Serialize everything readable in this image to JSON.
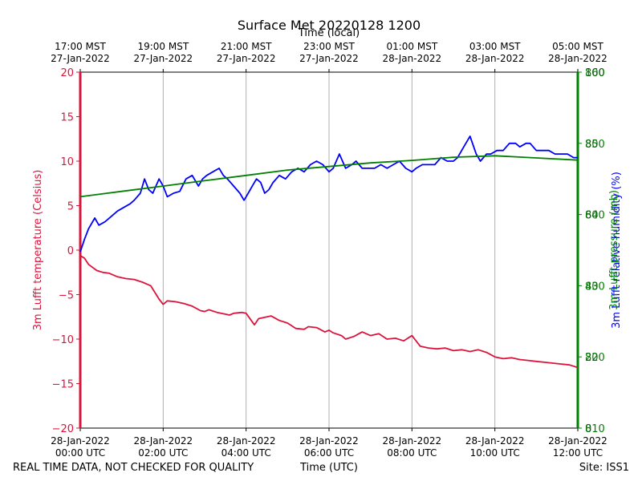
{
  "chart_data": {
    "type": "line",
    "title": "Surface Met 20220128 1200",
    "top_xlabel": "Time (local)",
    "bottom_xlabel": "Time (UTC)",
    "footer_left": "REAL TIME DATA, NOT CHECKED FOR QUALITY",
    "footer_right": "Site: ISS1",
    "x_range": [
      0,
      12
    ],
    "x_ticks": [
      {
        "x": 0,
        "utc": [
          "28-Jan-2022",
          "00:00 UTC"
        ],
        "local": [
          "17:00 MST",
          "27-Jan-2022"
        ]
      },
      {
        "x": 2,
        "utc": [
          "28-Jan-2022",
          "02:00 UTC"
        ],
        "local": [
          "19:00 MST",
          "27-Jan-2022"
        ]
      },
      {
        "x": 4,
        "utc": [
          "28-Jan-2022",
          "04:00 UTC"
        ],
        "local": [
          "21:00 MST",
          "27-Jan-2022"
        ]
      },
      {
        "x": 6,
        "utc": [
          "28-Jan-2022",
          "06:00 UTC"
        ],
        "local": [
          "23:00 MST",
          "27-Jan-2022"
        ]
      },
      {
        "x": 8,
        "utc": [
          "28-Jan-2022",
          "08:00 UTC"
        ],
        "local": [
          "01:00 MST",
          "28-Jan-2022"
        ]
      },
      {
        "x": 10,
        "utc": [
          "28-Jan-2022",
          "10:00 UTC"
        ],
        "local": [
          "03:00 MST",
          "28-Jan-2022"
        ]
      },
      {
        "x": 12,
        "utc": [
          "28-Jan-2022",
          "12:00 UTC"
        ],
        "local": [
          "05:00 MST",
          "28-Jan-2022"
        ]
      }
    ],
    "grid_x": true,
    "left_axis": {
      "label": "3m Lufft temperature (Celsius)",
      "color": "#dc143c",
      "ylim": [
        -20,
        20
      ],
      "ticks": [
        -20,
        -15,
        -10,
        -5,
        0,
        5,
        10,
        15,
        20
      ]
    },
    "right_axis": {
      "labels": [
        "3m Lufft relative humidity (%)",
        "3m Lufft pressure (mb)"
      ],
      "label_colors": [
        "#0000ff",
        "#008000"
      ],
      "color": "#008000",
      "ylim": [
        0,
        100
      ],
      "tick_values": [
        0,
        20,
        40,
        60,
        80,
        100
      ],
      "tick_labels_primary": [
        "0",
        "20",
        "40",
        "60",
        "80",
        "100"
      ],
      "tick_labels_secondary": [
        "810",
        "820",
        "830",
        "840",
        "850",
        "860"
      ],
      "tick_colors": [
        "#008000",
        "#006400"
      ]
    },
    "series": [
      {
        "name": "3m Lufft temperature (Celsius)",
        "axis": "left",
        "color": "#dc143c",
        "x": [
          0,
          0.1,
          0.2,
          0.4,
          0.55,
          0.7,
          0.9,
          1.1,
          1.3,
          1.5,
          1.7,
          1.9,
          2.0,
          2.1,
          2.3,
          2.5,
          2.7,
          2.9,
          3.0,
          3.1,
          3.3,
          3.5,
          3.6,
          3.7,
          3.9,
          4.0,
          4.2,
          4.3,
          4.4,
          4.6,
          4.8,
          5.0,
          5.2,
          5.4,
          5.5,
          5.7,
          5.9,
          6.0,
          6.1,
          6.3,
          6.4,
          6.6,
          6.8,
          7.0,
          7.2,
          7.4,
          7.6,
          7.8,
          8.0,
          8.2,
          8.4,
          8.6,
          8.8,
          9.0,
          9.2,
          9.4,
          9.6,
          9.8,
          10.0,
          10.2,
          10.4,
          10.6,
          10.8,
          11.0,
          11.2,
          11.4,
          11.6,
          11.8,
          12.0
        ],
        "values": [
          -0.6,
          -0.9,
          -1.6,
          -2.3,
          -2.5,
          -2.6,
          -3.0,
          -3.2,
          -3.3,
          -3.6,
          -4.0,
          -5.5,
          -6.1,
          -5.7,
          -5.8,
          -6.0,
          -6.3,
          -6.8,
          -6.9,
          -6.7,
          -7.0,
          -7.2,
          -7.3,
          -7.1,
          -7.0,
          -7.1,
          -8.4,
          -7.7,
          -7.6,
          -7.4,
          -7.9,
          -8.2,
          -8.8,
          -8.9,
          -8.6,
          -8.7,
          -9.2,
          -9.0,
          -9.3,
          -9.6,
          -10.0,
          -9.7,
          -9.2,
          -9.6,
          -9.4,
          -10.0,
          -9.9,
          -10.2,
          -9.6,
          -10.8,
          -11.0,
          -11.1,
          -11.0,
          -11.3,
          -11.2,
          -11.4,
          -11.2,
          -11.5,
          -12.0,
          -12.2,
          -12.1,
          -12.3,
          -12.4,
          -12.5,
          -12.6,
          -12.7,
          -12.8,
          -12.9,
          -13.2
        ]
      },
      {
        "name": "3m Lufft relative humidity (%)",
        "axis": "right",
        "color": "#0000ff",
        "x": [
          0,
          0.1,
          0.2,
          0.35,
          0.45,
          0.6,
          0.75,
          0.9,
          1.05,
          1.2,
          1.3,
          1.45,
          1.55,
          1.65,
          1.75,
          1.9,
          2.0,
          2.1,
          2.25,
          2.4,
          2.55,
          2.7,
          2.85,
          2.95,
          3.05,
          3.2,
          3.35,
          3.45,
          3.55,
          3.7,
          3.85,
          3.95,
          4.05,
          4.15,
          4.25,
          4.35,
          4.45,
          4.55,
          4.65,
          4.8,
          4.95,
          5.1,
          5.25,
          5.4,
          5.55,
          5.7,
          5.85,
          6.0,
          6.1,
          6.25,
          6.4,
          6.55,
          6.65,
          6.8,
          6.95,
          7.1,
          7.25,
          7.4,
          7.55,
          7.7,
          7.85,
          8.0,
          8.1,
          8.25,
          8.4,
          8.55,
          8.7,
          8.85,
          9.0,
          9.1,
          9.25,
          9.4,
          9.55,
          9.65,
          9.8,
          9.9,
          10.05,
          10.2,
          10.35,
          10.5,
          10.6,
          10.75,
          10.85,
          11.0,
          11.15,
          11.3,
          11.45,
          11.6,
          11.75,
          11.9,
          12.0
        ],
        "values": [
          49.5,
          53,
          56,
          59,
          57,
          58,
          59.5,
          61,
          62,
          63,
          64,
          66,
          70,
          67,
          66,
          70,
          68,
          65,
          66,
          66.5,
          70,
          71,
          68,
          70,
          71,
          72,
          73,
          71,
          70,
          68,
          66,
          64,
          66,
          68,
          70,
          69,
          66,
          67,
          69,
          71,
          70,
          72,
          73,
          72,
          74,
          75,
          74,
          72,
          73,
          77,
          73,
          74,
          75,
          73,
          73,
          73,
          74,
          73,
          74,
          75,
          73,
          72,
          73,
          74,
          74,
          74,
          76,
          75,
          75,
          76,
          79,
          82,
          77,
          75,
          77,
          77,
          78,
          78,
          80,
          80,
          79,
          80,
          80,
          78,
          78,
          78,
          77,
          77,
          77,
          76,
          76
        ]
      },
      {
        "name": "3m Lufft pressure (mb)",
        "axis": "right",
        "color": "#008000",
        "x": [
          0,
          1,
          2,
          3,
          4,
          5,
          6,
          7,
          8,
          9,
          10,
          11,
          12
        ],
        "values": [
          65,
          66.5,
          68,
          69.5,
          71,
          72.5,
          73.5,
          74.5,
          75.2,
          76.1,
          76.5,
          75.9,
          75.3
        ]
      }
    ]
  }
}
